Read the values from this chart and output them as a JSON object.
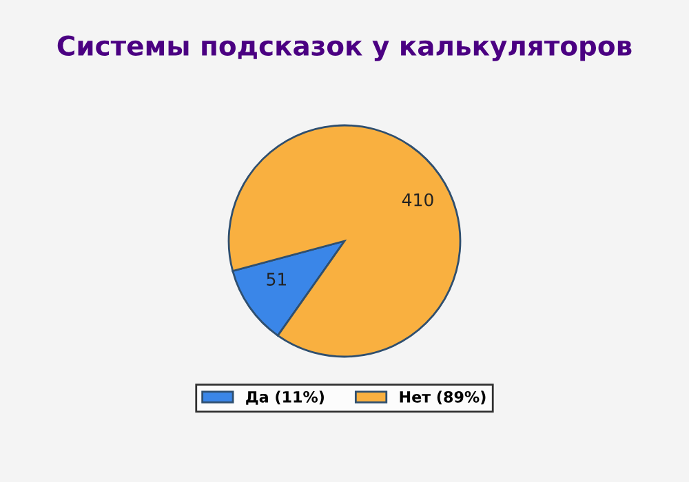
{
  "chart_data": {
    "type": "pie",
    "title": "Системы подсказок у калькуляторов",
    "categories": [
      "Да (11%)",
      "Нет (89%)"
    ],
    "values": [
      51,
      410
    ],
    "colors": [
      "#3a86e8",
      "#f9b040"
    ],
    "data_labels": true,
    "legend": "bottom"
  }
}
